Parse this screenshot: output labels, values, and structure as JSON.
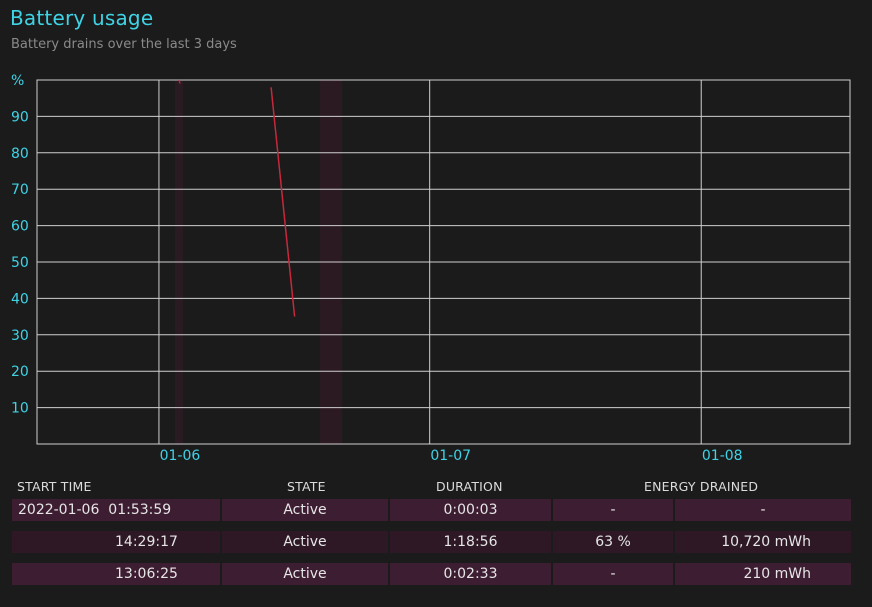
{
  "header": {
    "title": "Battery usage",
    "subtitle": "Battery drains over the last 3 days"
  },
  "chart_data": {
    "type": "line",
    "ylabel": "%",
    "ylim": [
      0,
      100
    ],
    "y_ticks": [
      "90",
      "80",
      "70",
      "60",
      "50",
      "40",
      "30",
      "20",
      "10"
    ],
    "x_tick_labels": [
      "01-06",
      "01-07",
      "01-08"
    ],
    "grid": true,
    "series": [
      {
        "values": [
          [
            0.6,
            98
          ],
          [
            0.66,
            35
          ]
        ]
      }
    ],
    "line_color": "#c8283c"
  },
  "table": {
    "columns": [
      "START TIME",
      "STATE",
      "DURATION",
      "ENERGY DRAINED"
    ],
    "rows": [
      {
        "date": "2022-01-06",
        "time": "01:53:59",
        "state": "Active",
        "duration": "0:00:03",
        "percent": "-",
        "energy": "-"
      },
      {
        "date": "",
        "time": "14:29:17",
        "state": "Active",
        "duration": "1:18:56",
        "percent": "63 %",
        "energy": "10,720 mWh"
      },
      {
        "date": "",
        "time": "13:06:25",
        "state": "Active",
        "duration": "0:02:33",
        "percent": "-",
        "energy": "210 mWh"
      }
    ]
  },
  "colors": {
    "accent": "#3fd3e6",
    "row_dark": "#2e1826",
    "row_light": "#3d1d32",
    "line": "#c8283c"
  }
}
